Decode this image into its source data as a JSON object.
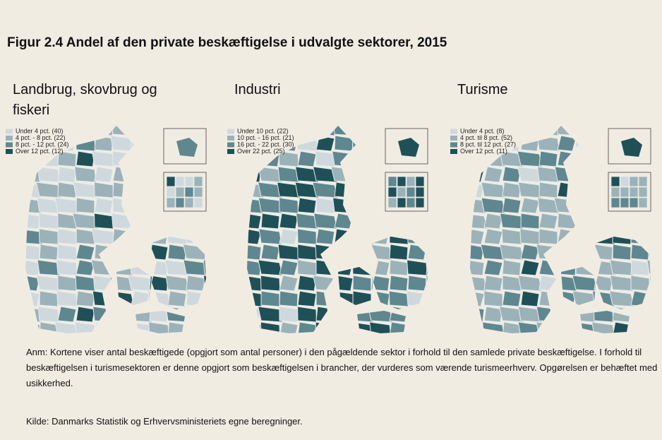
{
  "title": "Figur 2.4 Andel af den private beskæftigelse i udvalgte sektorer, 2015",
  "panels": [
    {
      "title": "Landbrug, skovbrug og fiskeri",
      "legend": [
        "Under 4 pct. (40)",
        "4 pct. - 8 pct. (22)",
        "8 pct. - 12 pct. (24)",
        "Over 12 pct. (12)"
      ]
    },
    {
      "title": "Industri",
      "legend": [
        "Under 10 pct. (22)",
        "10 pct. - 16 pct. (21)",
        "16 pct. - 22 pct. (30)",
        "Over 22 pct. (25)"
      ]
    },
    {
      "title": "Turisme",
      "legend": [
        "Under 4 pct. (8)",
        "4 pct. til 8 pct. (52)",
        "8 pct. til 12 pct. (27)",
        "Over 12 pct. (11)"
      ]
    }
  ],
  "note": "Anm: Kortene viser antal beskæftigede (opgjort som antal personer) i den pågældende sektor i forhold til den samlede private beskæftigelse. I forhold til beskæftigelsen i turismesektoren er denne opgjort som beskæftigelsen i brancher, der vurderes som værende turismeerhverv. Opgørelsen er behæftet med usikkerhed.",
  "source": "Kilde: Danmarks Statistik og Erhvervsministeriets egne beregninger."
}
